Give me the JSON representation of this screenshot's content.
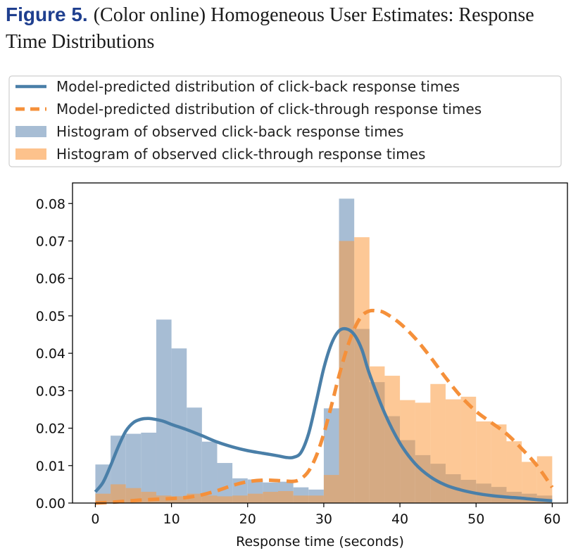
{
  "figure": {
    "label": "Figure 5.",
    "title": "(Color online) Homogeneous User Estimates: Response Time Distributions"
  },
  "colors": {
    "click_back_line": "#4a7fa8",
    "click_through_line": "#f5903a",
    "click_back_hist": "#a7bdd4",
    "click_through_hist": "#fdc28c",
    "overlap": "#e2b58f"
  },
  "chart_data": {
    "type": "bar",
    "xlabel": "Response time (seconds)",
    "ylabel": "",
    "xlim": [
      -3,
      62
    ],
    "ylim": [
      0,
      0.0855
    ],
    "xticks": [
      "0",
      "10",
      "20",
      "30",
      "40",
      "50",
      "60"
    ],
    "yticks": [
      "0.00",
      "0.01",
      "0.02",
      "0.03",
      "0.04",
      "0.05",
      "0.06",
      "0.07",
      "0.08"
    ],
    "bin_width": 2,
    "bin_edges_start": 0,
    "legend_position": "top, outside plot",
    "legend": [
      "Model-predicted distribution of click-back response times",
      "Model-predicted distribution of click-through response times",
      "Histogram of observed click-back response times",
      "Histogram of observed click-through response times"
    ],
    "series": [
      {
        "name": "Histogram of observed click-back response times",
        "kind": "histogram",
        "values": [
          0.0103,
          0.018,
          0.0185,
          0.0188,
          0.049,
          0.0413,
          0.0255,
          0.0164,
          0.0107,
          0.0066,
          0.0063,
          0.0055,
          0.0057,
          0.0042,
          0.0036,
          0.0253,
          0.0813,
          0.0465,
          0.0323,
          0.0232,
          0.0168,
          0.0128,
          0.0105,
          0.0077,
          0.0062,
          0.0052,
          0.0043,
          0.003,
          0.0025,
          0.002
        ]
      },
      {
        "name": "Histogram of observed click-through response times",
        "kind": "histogram",
        "values": [
          0.0025,
          0.005,
          0.004,
          0.003,
          0.002,
          0.0018,
          0.0025,
          0.002,
          0.0018,
          0.002,
          0.0025,
          0.003,
          0.0032,
          0.002,
          0.002,
          0.0075,
          0.07,
          0.071,
          0.0365,
          0.034,
          0.0275,
          0.0268,
          0.0318,
          0.0277,
          0.0284,
          0.0218,
          0.021,
          0.0165,
          0.011,
          0.0125
        ]
      },
      {
        "name": "Model-predicted distribution of click-back response times",
        "kind": "line",
        "x": [
          0,
          1,
          2,
          3,
          4,
          5,
          6,
          7,
          8,
          9,
          10,
          12,
          14,
          16,
          18,
          20,
          22,
          24,
          25,
          26,
          27,
          28,
          29,
          30,
          31,
          32,
          33,
          34,
          35,
          36,
          38,
          40,
          42,
          44,
          46,
          48,
          50,
          52,
          54,
          56,
          58,
          60
        ],
        "y": [
          0.003,
          0.0055,
          0.01,
          0.015,
          0.0192,
          0.0215,
          0.0224,
          0.0226,
          0.0223,
          0.0218,
          0.021,
          0.0196,
          0.018,
          0.0163,
          0.015,
          0.014,
          0.0133,
          0.0126,
          0.0122,
          0.0122,
          0.0135,
          0.0185,
          0.027,
          0.036,
          0.0425,
          0.046,
          0.0465,
          0.045,
          0.041,
          0.0345,
          0.024,
          0.016,
          0.0105,
          0.007,
          0.0048,
          0.0035,
          0.0026,
          0.002,
          0.0016,
          0.0013,
          0.0009,
          0.0006
        ]
      },
      {
        "name": "Model-predicted distribution of click-through response times",
        "kind": "line",
        "dashed": true,
        "x": [
          0,
          2,
          4,
          6,
          8,
          10,
          12,
          14,
          16,
          18,
          20,
          22,
          24,
          26,
          27,
          28,
          29,
          30,
          31,
          32,
          33,
          34,
          35,
          36,
          37,
          38,
          40,
          42,
          44,
          46,
          48,
          50,
          52,
          54,
          56,
          58,
          60
        ],
        "y": [
          0.0,
          0.0002,
          0.0005,
          0.0008,
          0.001,
          0.0012,
          0.0015,
          0.0022,
          0.0033,
          0.0047,
          0.0057,
          0.0061,
          0.006,
          0.0058,
          0.0065,
          0.0085,
          0.0125,
          0.0185,
          0.026,
          0.034,
          0.041,
          0.0465,
          0.05,
          0.0513,
          0.0513,
          0.0508,
          0.048,
          0.044,
          0.039,
          0.0335,
          0.0285,
          0.0245,
          0.0215,
          0.0185,
          0.0145,
          0.01,
          0.0042
        ]
      }
    ]
  }
}
